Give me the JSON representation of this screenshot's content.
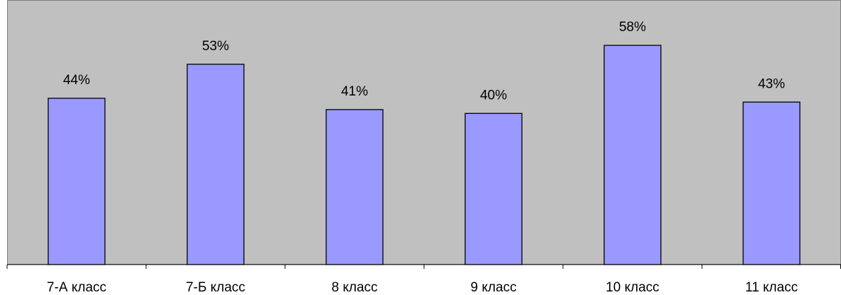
{
  "chart_data": {
    "type": "bar",
    "categories": [
      "7-А класс",
      "7-Б класс",
      "8 класс",
      "9 класс",
      "10 класс",
      "11 класс"
    ],
    "values": [
      44,
      53,
      41,
      40,
      58,
      43
    ],
    "data_labels": [
      "44%",
      "53%",
      "41%",
      "40%",
      "58%",
      "43%"
    ],
    "ylim": [
      0,
      70
    ],
    "grid": false,
    "legend": "none",
    "colors": {
      "bar_fill": "#9999ff",
      "plot_background": "#c0c0c0"
    }
  }
}
